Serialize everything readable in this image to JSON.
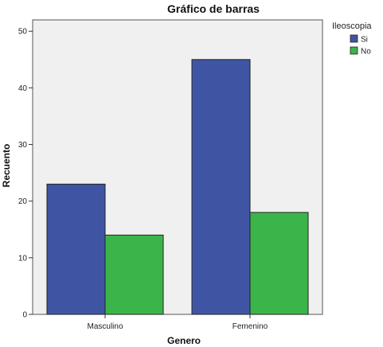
{
  "chart_data": {
    "type": "bar",
    "title": "Gráfico de barras",
    "xlabel": "Genero",
    "ylabel": "Recuento",
    "categories": [
      "Masculino",
      "Femenino"
    ],
    "series": [
      {
        "name": "Si",
        "values": [
          23,
          45
        ],
        "color": "#3f55a3"
      },
      {
        "name": "No",
        "values": [
          14,
          18
        ],
        "color": "#3bb54a"
      }
    ],
    "ylim": [
      0,
      52
    ],
    "yticks": [
      0,
      10,
      20,
      30,
      40,
      50
    ],
    "grid": false,
    "legend": {
      "title": "Ileoscopia",
      "placement": "right"
    },
    "colors": {
      "plot_background": "#f0f0f0",
      "frame": "#555555"
    }
  }
}
